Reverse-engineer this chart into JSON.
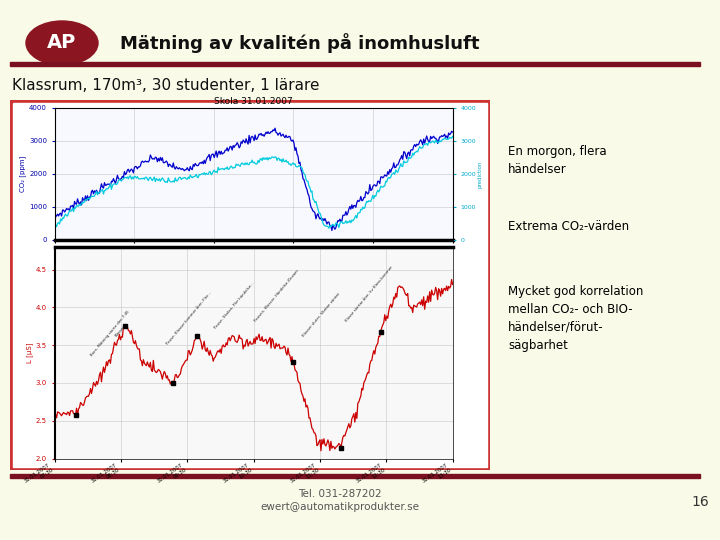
{
  "bg_color": "#fafae8",
  "title": "Mätning av kvalitén på inomhusluft",
  "title_color": "#111111",
  "subtitle": "Klassrum, 170m³, 30 studenter, 1 lärare",
  "subtitle_color": "#111111",
  "separator_color": "#7a1020",
  "footer_line1": "Tel. 031-287202",
  "footer_line2": "ewert@automatikprodukter.se",
  "footer_color": "#555555",
  "page_number": "16",
  "annotations": [
    "En morgon, flera\nhändelser",
    "Extrema CO₂-värden",
    "Mycket god korrelation\nmellan CO₂- och BIO-\nhändelser/förut-\nsägbarhet"
  ],
  "chart_title": "Skola 31.01.2007",
  "logo_oval_color": "#8b1520",
  "logo_text": "AP",
  "logo_text_color": "#ffffff",
  "chart_border_color": "#cc3333",
  "top_chart_bg": "#ffffff",
  "bot_chart_bg": "#ffffff"
}
